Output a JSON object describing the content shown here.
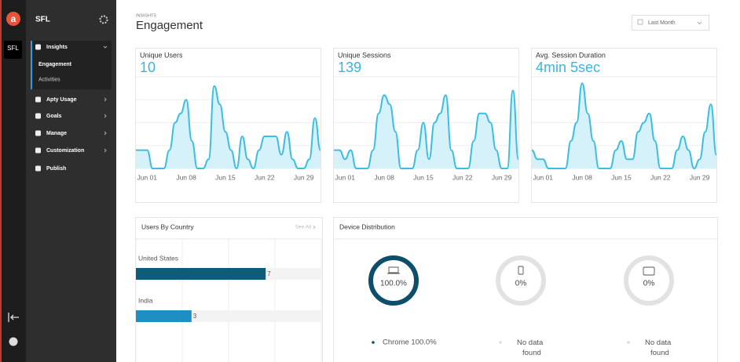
{
  "sidebar": {
    "workspace": "SFL",
    "badge": "SFL",
    "menu": [
      {
        "label": "Insights",
        "children": [
          "Engagement",
          "Activities"
        ]
      },
      {
        "label": "Apty Usage"
      },
      {
        "label": "Goals"
      },
      {
        "label": "Manage"
      },
      {
        "label": "Customization"
      },
      {
        "label": "Publish"
      }
    ]
  },
  "header": {
    "eyebrow": "INSIGHTS",
    "title": "Engagement",
    "date_filter": "Last Month"
  },
  "chart_data": [
    {
      "type": "area",
      "title": "Unique Users",
      "headline": "10",
      "color": "#3cbde3",
      "categories": [
        null,
        null,
        "Jun 01",
        null,
        null,
        null,
        null,
        null,
        null,
        "Jun 08",
        null,
        null,
        null,
        null,
        null,
        null,
        "Jun 15",
        null,
        null,
        null,
        null,
        null,
        null,
        "Jun 22",
        null,
        null,
        null,
        null,
        null,
        null,
        "Jun 29",
        null,
        null,
        null
      ],
      "values": [
        2,
        2,
        2,
        0,
        0,
        0,
        2,
        5,
        6,
        7.5,
        3,
        0,
        0,
        1,
        9,
        7,
        4,
        2,
        0,
        3.5,
        1,
        0,
        2,
        3.5,
        3.5,
        3.5,
        1.5,
        4,
        1,
        0,
        0,
        1,
        5.5,
        2
      ],
      "ylim": [
        0,
        10
      ],
      "yticks": [
        0,
        2.5,
        5,
        7.5,
        10
      ],
      "grid": true
    },
    {
      "type": "area",
      "title": "Unique Sessions",
      "headline": "139",
      "color": "#3cbde3",
      "categories": [
        null,
        null,
        "Jun 01",
        null,
        null,
        null,
        null,
        null,
        null,
        "Jun 08",
        null,
        null,
        null,
        null,
        null,
        null,
        "Jun 15",
        null,
        null,
        null,
        null,
        null,
        null,
        "Jun 22",
        null,
        null,
        null,
        null,
        null,
        null,
        "Jun 29",
        null,
        null,
        null
      ],
      "values": [
        2,
        2,
        1,
        2,
        0,
        0,
        0,
        2,
        6,
        8,
        7,
        4,
        0,
        0,
        0,
        2,
        5,
        1,
        5,
        6,
        8,
        2,
        0,
        0,
        0,
        3,
        6,
        6,
        5,
        2,
        0,
        0,
        8.5,
        1
      ],
      "ylim": [
        0,
        10
      ],
      "yticks": [
        0,
        2.5,
        5,
        7.5,
        10
      ],
      "grid": true
    },
    {
      "type": "area",
      "title": "Avg. Session Duration",
      "headline": "4min 5sec",
      "color": "#3cbde3",
      "categories": [
        null,
        null,
        "Jun 01",
        null,
        null,
        null,
        null,
        null,
        null,
        "Jun 08",
        null,
        null,
        null,
        null,
        null,
        null,
        "Jun 15",
        null,
        null,
        null,
        null,
        null,
        null,
        "Jun 22",
        null,
        null,
        null,
        null,
        null,
        null,
        "Jun 29",
        null,
        null,
        null
      ],
      "values": [
        2,
        1,
        1,
        0,
        0,
        0,
        0,
        3,
        5,
        9.3,
        6,
        3,
        0,
        0,
        0,
        2,
        3,
        1,
        1,
        4,
        5,
        6,
        3,
        0,
        0,
        0,
        2,
        3.5,
        2,
        0,
        1,
        4,
        7,
        1.5
      ],
      "ylim": [
        0,
        10
      ],
      "yticks": [
        0,
        2.5,
        5,
        7.5,
        10
      ],
      "grid": true
    },
    {
      "type": "hbar",
      "title": "Users By Country",
      "link": "See All",
      "categories": [
        "United States",
        "India"
      ],
      "values": [
        7,
        3
      ],
      "colors": [
        "#0d5c7a",
        "#1d8fc2"
      ],
      "xlim": [
        0,
        10
      ],
      "xticks": [
        0,
        2.5,
        5,
        7.5,
        10
      ],
      "grid": true
    },
    {
      "type": "donut",
      "title": "Device Distribution",
      "values": [
        100,
        0,
        0
      ],
      "value_labels": [
        "100.0%",
        "0%",
        "0%"
      ],
      "legend": [
        "Chrome 100.0%",
        "No data found",
        "No data found"
      ],
      "color": "#0d4f6b",
      "track": "#e2e2e2"
    }
  ]
}
